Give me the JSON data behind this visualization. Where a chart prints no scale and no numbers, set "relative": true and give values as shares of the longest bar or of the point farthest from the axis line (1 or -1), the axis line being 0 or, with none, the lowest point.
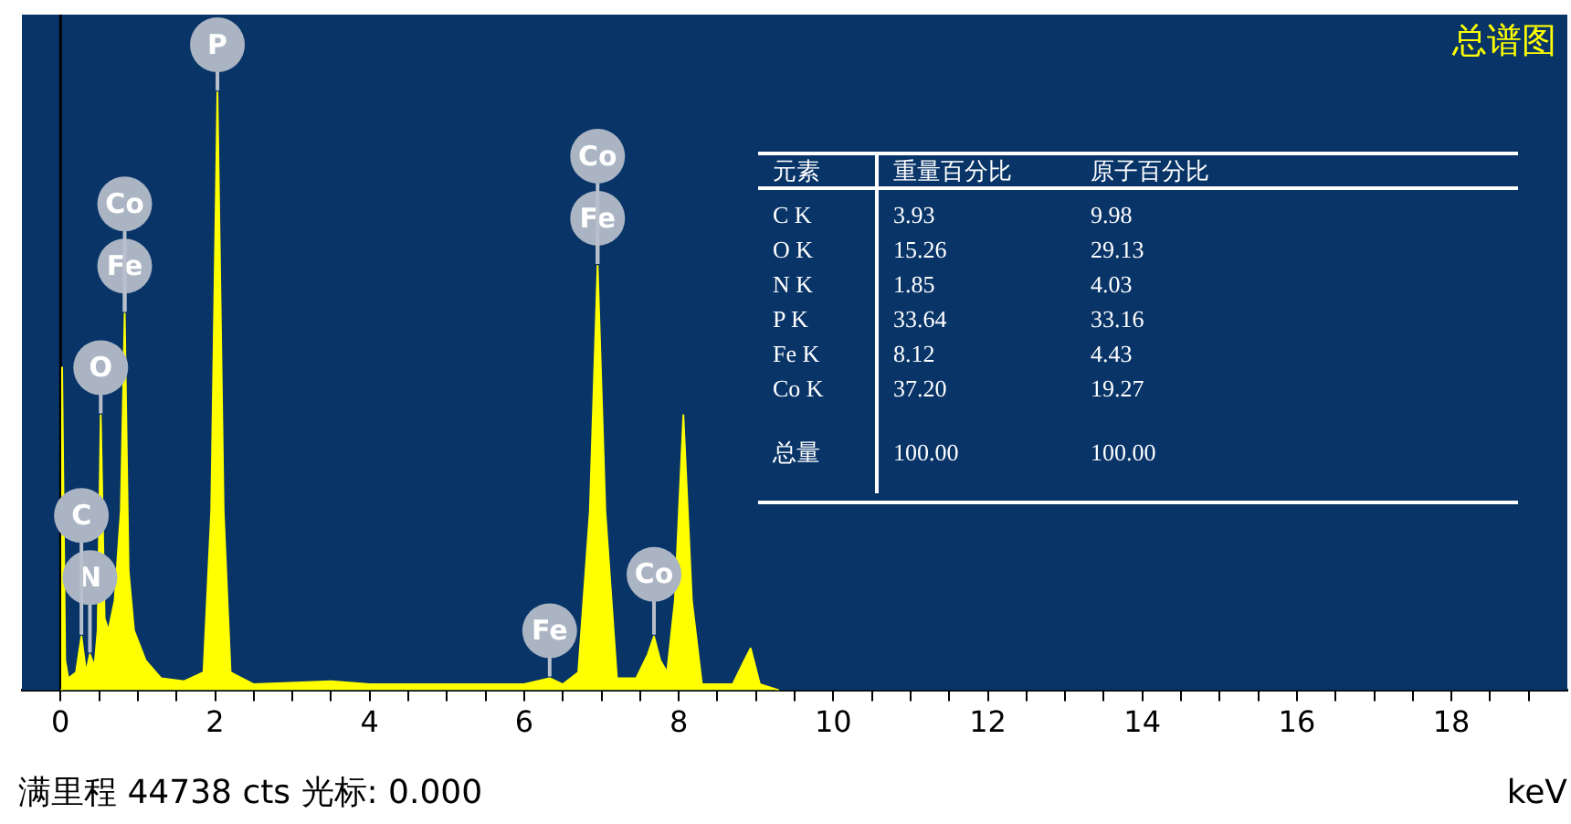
{
  "chart_data": {
    "type": "area",
    "title": "总谱图",
    "xlabel": "keV",
    "relative": true,
    "xlim": [
      -0.5,
      19.5
    ],
    "xticks": [
      0,
      {
        "value": 0.5,
        "label": null
      },
      {
        "value": 1,
        "label": null
      },
      {
        "value": 1.5,
        "label": null
      },
      2,
      {
        "value": 2.5,
        "label": null
      },
      {
        "value": 3,
        "label": null
      },
      {
        "value": 3.5,
        "label": null
      },
      4,
      {
        "value": 4.5,
        "label": null
      },
      {
        "value": 5,
        "label": null
      },
      {
        "value": 5.5,
        "label": null
      },
      6,
      {
        "value": 6.5,
        "label": null
      },
      {
        "value": 7,
        "label": null
      },
      {
        "value": 7.5,
        "label": null
      },
      8,
      {
        "value": 8.5,
        "label": null
      },
      {
        "value": 9,
        "label": null
      },
      {
        "value": 9.5,
        "label": null
      },
      10,
      {
        "value": 10.5,
        "label": null
      },
      {
        "value": 11,
        "label": null
      },
      {
        "value": 11.5,
        "label": null
      },
      12,
      {
        "value": 12.5,
        "label": null
      },
      {
        "value": 13,
        "label": null
      },
      {
        "value": 13.5,
        "label": null
      },
      14,
      {
        "value": 14.5,
        "label": null
      },
      {
        "value": 15,
        "label": null
      },
      {
        "value": 15.5,
        "label": null
      },
      16,
      {
        "value": 16.5,
        "label": null
      },
      {
        "value": 17,
        "label": null
      },
      {
        "value": 17.5,
        "label": null
      },
      18,
      {
        "value": 18.5,
        "label": null
      },
      {
        "value": 19,
        "label": null
      }
    ],
    "legend": false,
    "series": [
      {
        "color": "#ffff00",
        "x": [
          0,
          0.02,
          0.06,
          0.1,
          0.2,
          0.27,
          0.33,
          0.38,
          0.44,
          0.48,
          0.52,
          0.57,
          0.62,
          0.7,
          0.78,
          0.83,
          0.88,
          0.95,
          1.1,
          1.3,
          1.6,
          1.85,
          1.95,
          2.03,
          2.11,
          2.2,
          2.5,
          3.5,
          4,
          6,
          6.33,
          6.5,
          6.7,
          6.85,
          6.95,
          7.05,
          7.2,
          7.45,
          7.6,
          7.68,
          7.76,
          7.85,
          7.95,
          8.06,
          8.17,
          8.3,
          8.7,
          8.85,
          8.93,
          9.05,
          9.3
        ],
        "values": [
          0,
          0.54,
          0.05,
          0.02,
          0.03,
          0.09,
          0.03,
          0.06,
          0.04,
          0.1,
          0.46,
          0.12,
          0.1,
          0.15,
          0.3,
          0.63,
          0.2,
          0.1,
          0.05,
          0.02,
          0.015,
          0.03,
          0.3,
          1,
          0.3,
          0.03,
          0.01,
          0.015,
          0.01,
          0.01,
          0.02,
          0.01,
          0.03,
          0.3,
          0.71,
          0.3,
          0.02,
          0.02,
          0.06,
          0.09,
          0.05,
          0.03,
          0.15,
          0.46,
          0.15,
          0.01,
          0.01,
          0.05,
          0.07,
          0.01,
          0
        ]
      }
    ],
    "ref_lines": [
      {
        "axis": "x",
        "value": 0,
        "color": "#000000"
      }
    ],
    "annotations": [
      {
        "text": "N",
        "x": 0.38,
        "y": 0.06
      },
      {
        "text": "C",
        "x": 0.27,
        "y": 0.09
      },
      {
        "text": "O",
        "x": 0.52,
        "y": 0.46
      },
      {
        "text": "Fe",
        "x": 0.83,
        "y": 0.63
      },
      {
        "text": "Co",
        "x": 0.83,
        "y": 0.63
      },
      {
        "text": "P",
        "x": 2.03,
        "y": 1
      },
      {
        "text": "Fe",
        "x": 6.33,
        "y": 0.02
      },
      {
        "text": "Fe",
        "x": 6.95,
        "y": 0.71
      },
      {
        "text": "Co",
        "x": 6.95,
        "y": 0.71
      },
      {
        "text": "Co",
        "x": 7.68,
        "y": 0.09
      },
      "满里程 44738 cts 光标: 0.000",
      "元素",
      "重量百分比",
      "原子百分比",
      "C K",
      "3.93",
      "9.98",
      "O K",
      "15.26",
      "29.13",
      "N K",
      "1.85",
      "4.03",
      "P K",
      "33.64",
      "33.16",
      "Fe K",
      "8.12",
      "4.43",
      "Co K",
      "37.20",
      "19.27",
      "总量",
      "100.00",
      "100.00"
    ]
  }
}
